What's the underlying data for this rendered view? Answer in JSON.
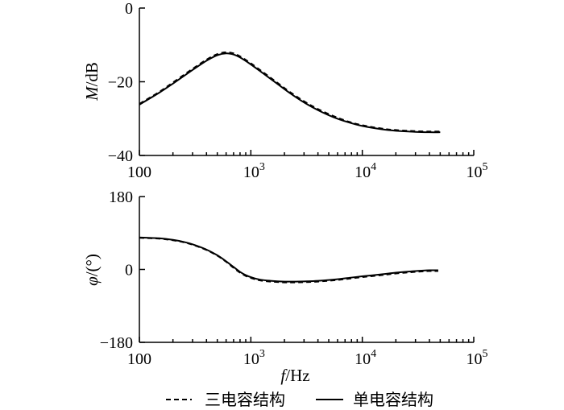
{
  "chart_data": [
    {
      "type": "line",
      "id": "magnitude",
      "xlabel_italic": "f",
      "xlabel_unit": "/Hz",
      "ylabel_italic": "M",
      "ylabel_unit": "/dB",
      "x_scale": "log",
      "xlim": [
        100,
        100000
      ],
      "ylim": [
        -40,
        0
      ],
      "yticks": [
        0,
        -20,
        -40
      ],
      "ytick_labels": [
        "0",
        "−20",
        "−40"
      ],
      "xticks": [
        100,
        1000,
        10000,
        100000
      ],
      "xtick_labels": [
        {
          "base": "100",
          "exp": ""
        },
        {
          "base": "10",
          "exp": "3"
        },
        {
          "base": "10",
          "exp": "4"
        },
        {
          "base": "10",
          "exp": "5"
        }
      ],
      "series": [
        {
          "name": "单电容结构",
          "style": "solid",
          "x": [
            100,
            150,
            200,
            300,
            400,
            500,
            600,
            700,
            800,
            1000,
            1300,
            1700,
            2200,
            3000,
            4000,
            5500,
            7500,
            10000,
            15000,
            20000,
            30000,
            40000,
            50000
          ],
          "y": [
            -26.2,
            -23.0,
            -20.5,
            -16.8,
            -14.3,
            -12.8,
            -12.3,
            -12.6,
            -13.4,
            -15.3,
            -17.8,
            -20.4,
            -22.9,
            -25.6,
            -27.7,
            -29.6,
            -31.0,
            -32.0,
            -32.9,
            -33.3,
            -33.6,
            -33.7,
            -33.7
          ]
        },
        {
          "name": "三电容结构",
          "style": "dashed",
          "x": [
            100,
            150,
            200,
            300,
            400,
            500,
            600,
            700,
            800,
            1000,
            1300,
            1700,
            2200,
            3000,
            4000,
            5500,
            7500,
            10000,
            15000,
            20000,
            30000,
            40000,
            50000
          ],
          "y": [
            -26.0,
            -22.8,
            -20.2,
            -16.5,
            -14.0,
            -12.5,
            -12.0,
            -12.3,
            -13.1,
            -15.0,
            -17.5,
            -20.1,
            -22.6,
            -25.3,
            -27.4,
            -29.3,
            -30.8,
            -31.8,
            -32.7,
            -33.1,
            -33.4,
            -33.5,
            -33.5
          ]
        }
      ]
    },
    {
      "type": "line",
      "id": "phase",
      "xlabel_italic": "f",
      "xlabel_unit": "/Hz",
      "ylabel_italic": "φ",
      "ylabel_unit": "/(°)",
      "x_scale": "log",
      "xlim": [
        100,
        100000
      ],
      "ylim": [
        -180,
        180
      ],
      "yticks": [
        180,
        0,
        -180
      ],
      "ytick_labels": [
        "180",
        "0",
        "−180"
      ],
      "xticks": [
        100,
        1000,
        10000,
        100000
      ],
      "xtick_labels": [
        {
          "base": "100",
          "exp": ""
        },
        {
          "base": "10",
          "exp": "3"
        },
        {
          "base": "10",
          "exp": "4"
        },
        {
          "base": "10",
          "exp": "5"
        }
      ],
      "series": [
        {
          "name": "单电容结构",
          "style": "solid",
          "x": [
            100,
            150,
            200,
            250,
            300,
            400,
            500,
            600,
            700,
            800,
            900,
            1000,
            1200,
            1500,
            2000,
            2500,
            3000,
            4000,
            6000,
            8000,
            10000,
            15000,
            20000,
            30000,
            40000,
            48000
          ],
          "y": [
            79,
            77,
            73,
            68,
            62,
            49,
            35,
            20,
            6,
            -6,
            -14,
            -19,
            -25,
            -28,
            -30,
            -30,
            -29.5,
            -28,
            -24,
            -20,
            -17,
            -12,
            -8,
            -4,
            -2,
            -2
          ]
        },
        {
          "name": "三电容结构",
          "style": "dashed",
          "x": [
            100,
            150,
            200,
            250,
            300,
            400,
            500,
            600,
            700,
            800,
            900,
            1000,
            1200,
            1500,
            2000,
            2500,
            3000,
            4000,
            6000,
            8000,
            10000,
            15000,
            20000,
            30000,
            40000,
            48000
          ],
          "y": [
            78,
            76,
            72,
            67,
            61,
            48,
            34,
            19,
            4,
            -8,
            -16,
            -21,
            -27,
            -30,
            -32,
            -32,
            -31.5,
            -30,
            -26,
            -22,
            -19,
            -14,
            -10,
            -6,
            -4,
            -4
          ]
        }
      ]
    }
  ],
  "legend": [
    {
      "label": "三电容结构",
      "style": "dashed"
    },
    {
      "label": "单电容结构",
      "style": "solid"
    }
  ]
}
